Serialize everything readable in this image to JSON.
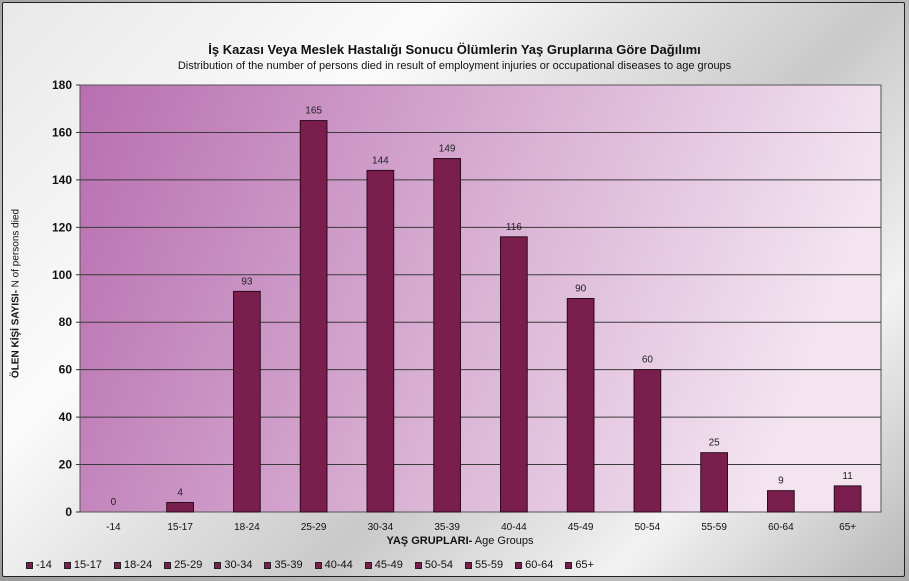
{
  "chart_data": {
    "type": "bar",
    "title": "İş Kazası  Veya Meslek Hastalığı Sonucu Ölümlerin Yaş Gruplarına Göre Dağılımı",
    "subtitle": "Distribution of the number of persons died in result of employment injuries or occupational diseases to age groups",
    "ylabel_bold": "ÖLEN KİŞİ SAYISI-",
    "ylabel_rest": " N of persons died",
    "xlabel_bold": "YAŞ GRUPLARI-",
    "xlabel_rest": " Age Groups",
    "categories": [
      "-14",
      "15-17",
      "18-24",
      "25-29",
      "30-34",
      "35-39",
      "40-44",
      "45-49",
      "50-54",
      "55-59",
      "60-64",
      "65+"
    ],
    "values": [
      0,
      4,
      93,
      165,
      144,
      149,
      116,
      90,
      60,
      25,
      9,
      11
    ],
    "ylim": [
      0,
      180
    ],
    "yticks": [
      0,
      20,
      40,
      60,
      80,
      100,
      120,
      140,
      160,
      180
    ],
    "grid": true,
    "legend_position": "bottom",
    "colors": {
      "bar": "#7a1f4d",
      "bar_edge": "#2a0a1a",
      "plot_bg_start": "#b86fb0",
      "plot_bg_end": "#f3e4f0"
    }
  }
}
